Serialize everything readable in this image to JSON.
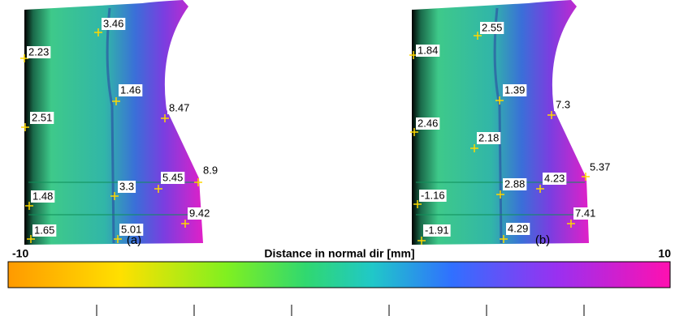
{
  "panels": [
    {
      "caption": "(a)",
      "points": [
        3.46,
        2.23,
        1.46,
        8.47,
        2.51,
        1.48,
        3.3,
        5.45,
        8.9,
        9.42,
        1.65,
        5.01
      ]
    },
    {
      "caption": "(b)",
      "points": [
        2.55,
        1.84,
        1.39,
        7.3,
        2.46,
        2.18,
        2.88,
        4.23,
        5.37,
        -1.16,
        7.41,
        -1.91,
        4.29
      ]
    }
  ],
  "colorbar": {
    "title": "Distance in normal dir [mm]",
    "min": -10,
    "max": 10
  }
}
